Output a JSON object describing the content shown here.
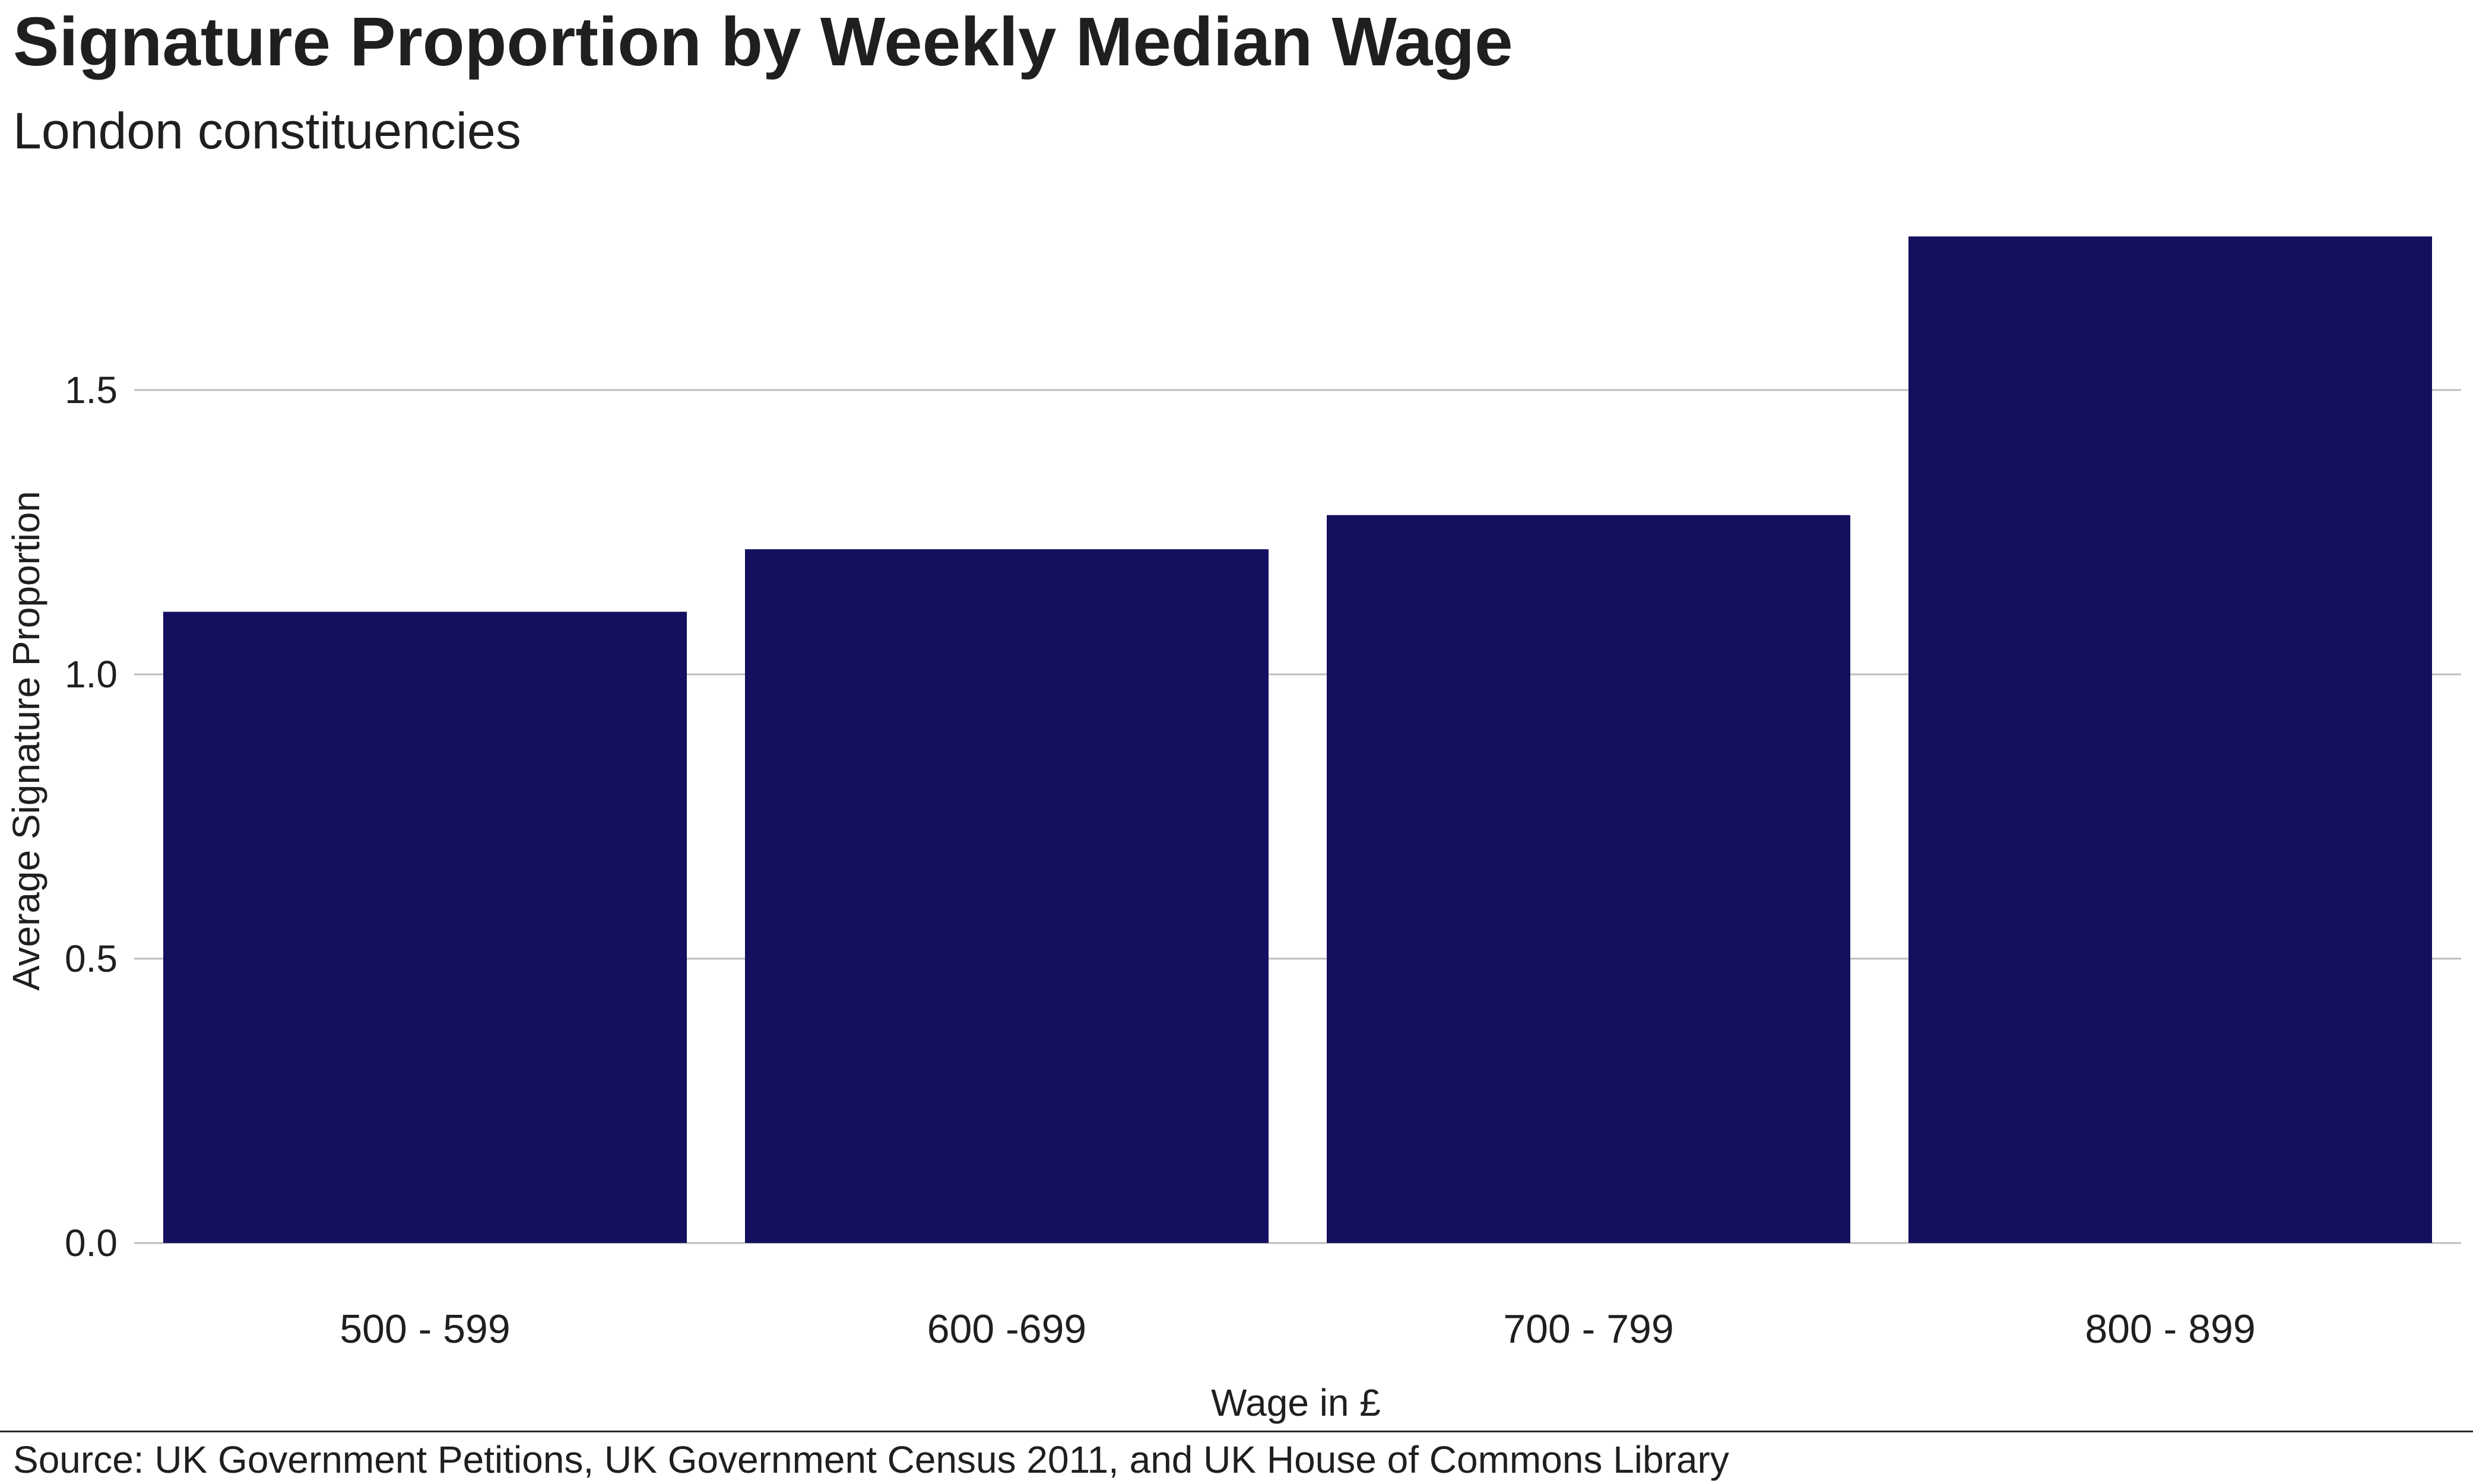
{
  "title": "Signature Proportion by Weekly Median Wage",
  "subtitle": "London constituencies",
  "source": "Source: UK Government Petitions, UK Government Census 2011, and UK House of Commons Library",
  "colors": {
    "bar": "#140f5e",
    "grid": "#bdbdbd",
    "text": "#1f1f1f"
  },
  "chart_data": {
    "type": "bar",
    "title": "Signature Proportion by Weekly Median Wage",
    "subtitle": "London constituencies",
    "xlabel": "Wage in £",
    "ylabel": "Average Signature Proportion",
    "categories": [
      "500 - 599",
      "600 -699",
      "700 - 799",
      "800 - 899"
    ],
    "values": [
      1.11,
      1.22,
      1.28,
      1.77
    ],
    "ylim": [
      0,
      1.85
    ],
    "yticks": [
      0.0,
      0.5,
      1.0,
      1.5
    ],
    "ytick_labels": [
      "0.0",
      "0.5",
      "1.0",
      "1.5"
    ],
    "grid": "horizontal",
    "legend": "none"
  }
}
